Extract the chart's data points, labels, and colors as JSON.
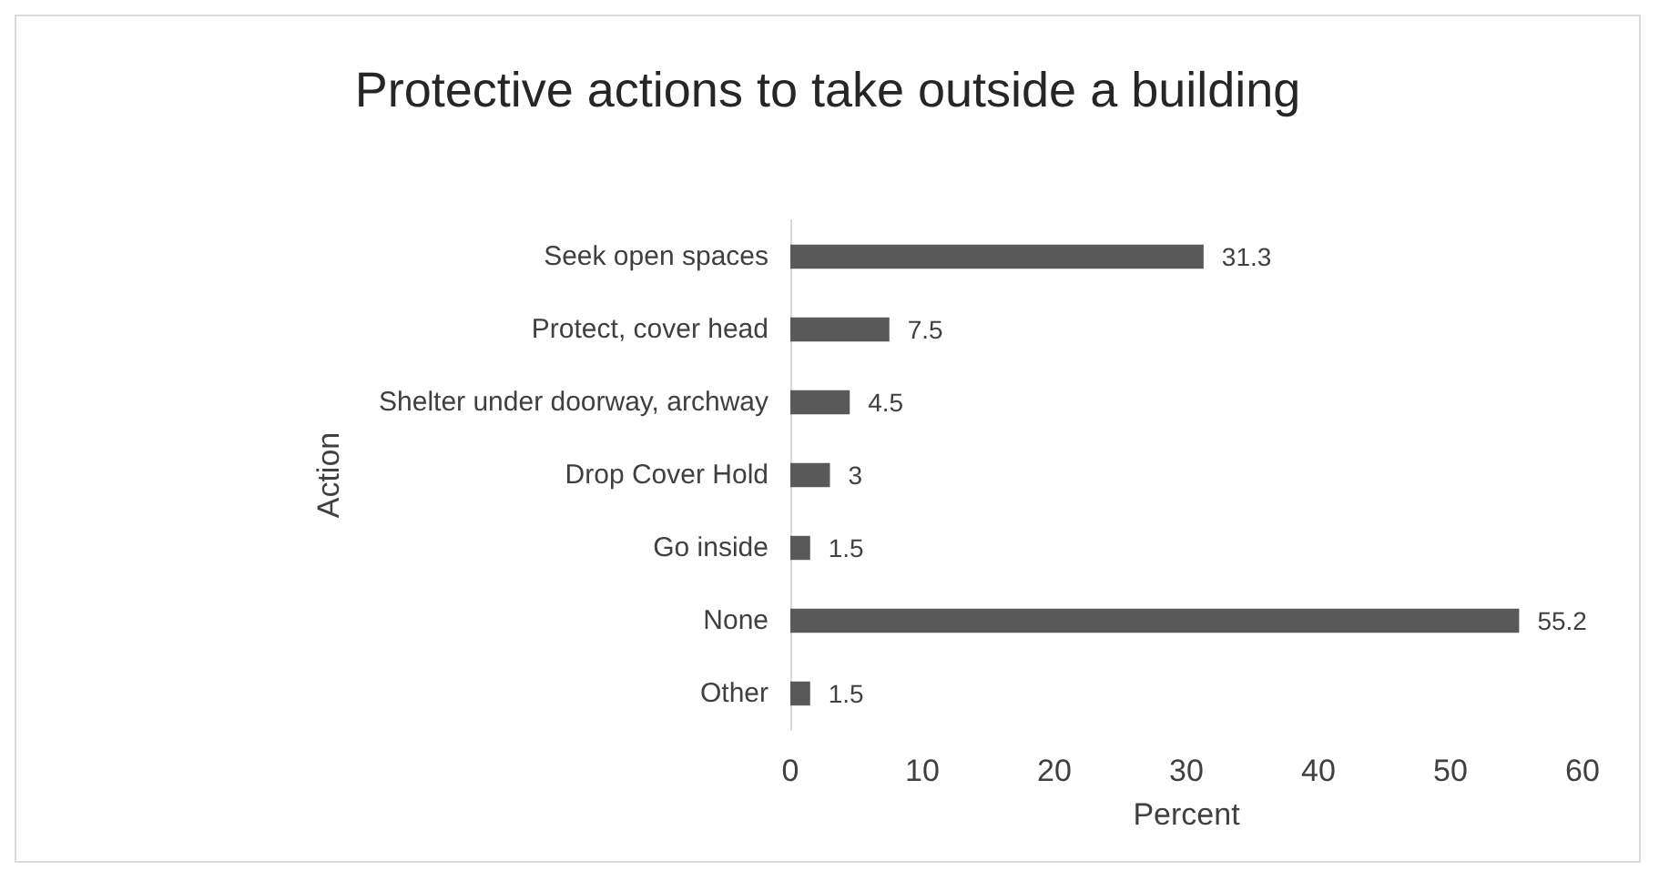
{
  "chart_data": {
    "type": "bar",
    "orientation": "horizontal",
    "title": "Protective actions to take outside a building",
    "xlabel": "Percent",
    "ylabel": "Action",
    "categories": [
      "Seek open spaces",
      "Protect, cover head",
      "Shelter under doorway, archway",
      "Drop Cover Hold",
      "Go inside",
      "None",
      "Other"
    ],
    "values": [
      31.3,
      7.5,
      4.5,
      3,
      1.5,
      55.2,
      1.5
    ],
    "color": "#595959",
    "xlim": [
      0,
      60
    ],
    "xticks": [
      0,
      10,
      20,
      30,
      40,
      50,
      60
    ],
    "data_labels": true
  }
}
